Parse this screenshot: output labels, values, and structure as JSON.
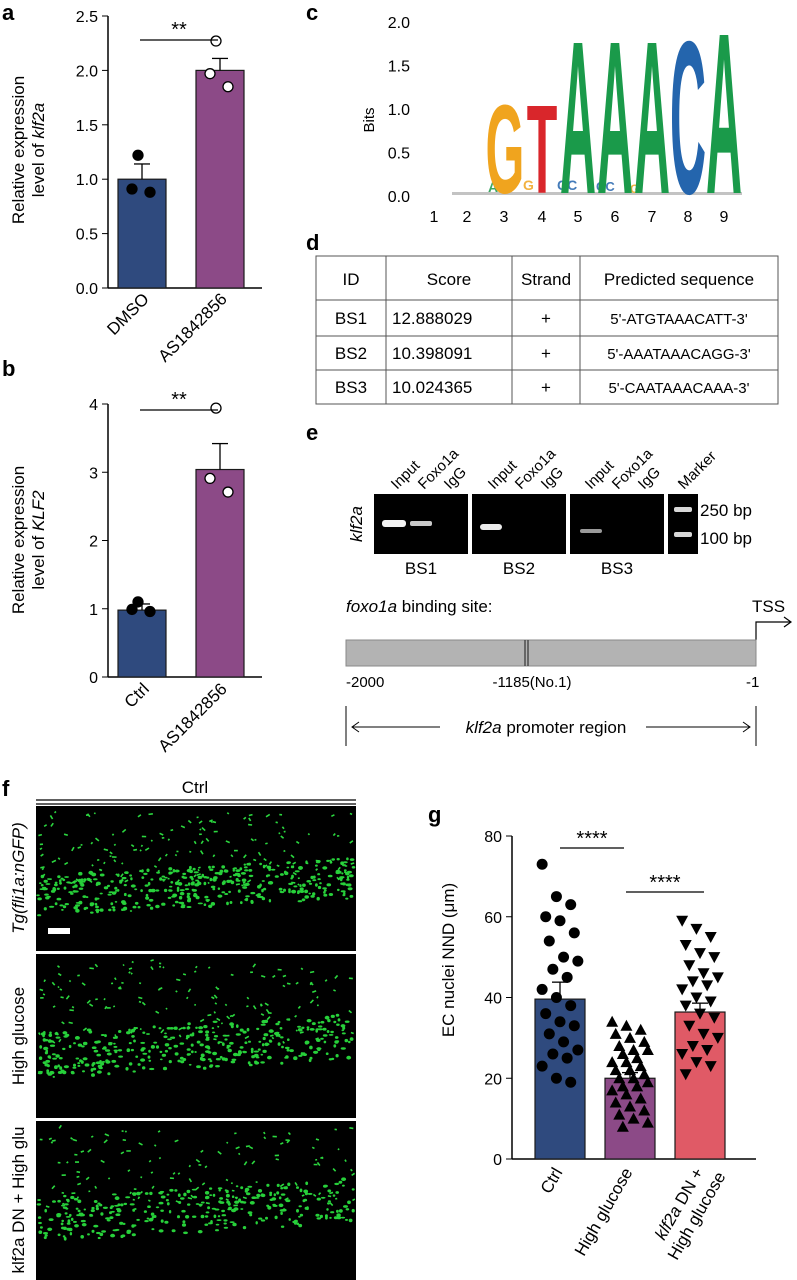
{
  "panels": {
    "a": {
      "letter": "a",
      "ylabel_line1": "Relative expression",
      "ylabel_line2": "level of ",
      "ylabel_gene": "klf2a",
      "significance": "**",
      "yticks": [
        "0.0",
        "0.5",
        "1.0",
        "1.5",
        "2.0",
        "2.5"
      ]
    },
    "b": {
      "letter": "b",
      "ylabel_line1": "Relative expression",
      "ylabel_line2": "level of ",
      "ylabel_gene": "KLF2",
      "significance": "**",
      "yticks": [
        "0",
        "1",
        "2",
        "3",
        "4"
      ]
    },
    "c": {
      "letter": "c",
      "ylabel": "Bits",
      "yticks": [
        "0.0",
        "0.5",
        "1.0",
        "1.5",
        "2.0"
      ],
      "positions": [
        "1",
        "2",
        "3",
        "4",
        "5",
        "6",
        "7",
        "8",
        "9"
      ],
      "logo_letters": [
        {
          "char": "G",
          "color": "#f0a41e"
        },
        {
          "char": "T",
          "color": "#d9262b"
        },
        {
          "char": "A",
          "color": "#1a9a4a"
        },
        {
          "char": "A",
          "color": "#1a9a4a"
        },
        {
          "char": "A",
          "color": "#1a9a4a"
        },
        {
          "char": "C",
          "color": "#2465ad"
        },
        {
          "char": "A",
          "color": "#1a9a4a"
        }
      ]
    },
    "d": {
      "letter": "d",
      "headers": [
        "ID",
        "Score",
        "Strand",
        "Predicted sequence"
      ],
      "rows": [
        [
          "BS1",
          "12.888029",
          "+",
          "5'-ATGTAAACATT-3'"
        ],
        [
          "BS2",
          "10.398091",
          "+",
          "5'-AAATAAACAGG-3'"
        ],
        [
          "BS3",
          "10.024365",
          "+",
          "5'-CAATAAACAAA-3'"
        ]
      ]
    },
    "e": {
      "letter": "e",
      "gene_label": "klf2a",
      "lane_labels": [
        "Input",
        "Foxo1a",
        "IgG",
        "Input",
        "Foxo1a",
        "IgG",
        "Input",
        "Foxo1a",
        "IgG",
        "Marker"
      ],
      "group_labels": [
        "BS1",
        "BS2",
        "BS3"
      ],
      "marker_sizes": [
        "250 bp",
        "100 bp"
      ],
      "binding_site_italic": "foxo1a",
      "binding_site_rest": " binding site:",
      "tss": "TSS",
      "coords": [
        "-2000",
        "-1185(No.1)",
        "-1"
      ],
      "promoter_italic": "klf2a",
      "promoter_rest": " promoter region"
    },
    "f": {
      "letter": "f",
      "top_label": "Ctrl",
      "row_labels": [
        "Tg(fli1a:nGFP)",
        "High glucose",
        "klf2a DN + High glu"
      ]
    },
    "g": {
      "letter": "g",
      "ylabel": "EC nuclei NND (μm)",
      "yticks": [
        "0",
        "20",
        "40",
        "60",
        "80"
      ],
      "significance": [
        "****",
        "****"
      ]
    }
  },
  "chart_data": [
    {
      "type": "bar",
      "panel": "a",
      "categories": [
        "DMSO",
        "AS1842856"
      ],
      "values": [
        1.0,
        2.0
      ],
      "errors": [
        0.14,
        0.11
      ],
      "points": [
        [
          1.22,
          0.91,
          0.88
        ],
        [
          2.27,
          1.97,
          1.85
        ]
      ],
      "ylim": [
        0,
        2.5
      ],
      "ylabel": "Relative expression level of klf2a",
      "colors": [
        "#2f4a7e",
        "#8c4a87"
      ]
    },
    {
      "type": "bar",
      "panel": "b",
      "categories": [
        "Ctrl",
        "AS1842856"
      ],
      "values": [
        0.98,
        3.04
      ],
      "errors": [
        0.09,
        0.38
      ],
      "points": [
        [
          1.1,
          0.99,
          0.96
        ],
        [
          3.94,
          2.91,
          2.71
        ]
      ],
      "ylim": [
        0,
        4
      ],
      "ylabel": "Relative expression level of KLF2",
      "colors": [
        "#2f4a7e",
        "#8c4a87"
      ]
    },
    {
      "type": "bar",
      "panel": "g",
      "categories": [
        "Ctrl",
        "High glucose",
        "klf2a DN + High glucose"
      ],
      "values": [
        39.6,
        20.0,
        36.4
      ],
      "errors": [
        4.2,
        1.4,
        2.2
      ],
      "ylim": [
        0,
        80
      ],
      "ylabel": "EC nuclei NND (μm)",
      "colors": [
        "#2f4a7e",
        "#8c4a87",
        "#e05a66"
      ],
      "points": [
        [
          73,
          65,
          63,
          60,
          59,
          56,
          54,
          50,
          49,
          47,
          45,
          42,
          40,
          38,
          36,
          34,
          33,
          31,
          29,
          27,
          26,
          25,
          23,
          20,
          19
        ],
        [
          34,
          33,
          32,
          31,
          30,
          29,
          28,
          27,
          27,
          26,
          25,
          24,
          24,
          23,
          22,
          22,
          21,
          20,
          20,
          19,
          18,
          18,
          17,
          16,
          15,
          14,
          13,
          12,
          11,
          10,
          9,
          8
        ],
        [
          59,
          57,
          55,
          53,
          51,
          50,
          48,
          46,
          45,
          44,
          43,
          42,
          40,
          39,
          38,
          36,
          35,
          33,
          31,
          30,
          28,
          27,
          26,
          24,
          23,
          21
        ]
      ]
    }
  ]
}
